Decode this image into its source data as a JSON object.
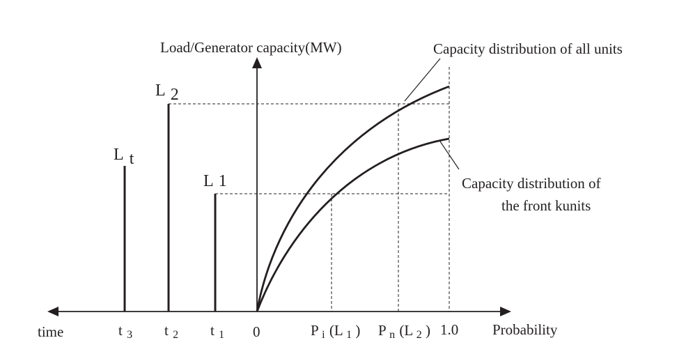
{
  "axis_labels": {
    "y": "Load/Generator capacity(MW)",
    "x_right": "Probability",
    "x_left": "time"
  },
  "curve_labels": {
    "all_units": "Capacity distribution of all units",
    "front_units_line1": "Capacity distribution of",
    "front_units_line2": "the front kunits"
  },
  "loads": {
    "lt": {
      "main": "L",
      "sub": "t"
    },
    "l2": {
      "main": "L",
      "sub": "2"
    },
    "l1": {
      "main": "L",
      "sub": "1"
    }
  },
  "ticks": {
    "t3": {
      "main": "t",
      "sub": "3"
    },
    "t2": {
      "main": "t",
      "sub": "2"
    },
    "t1": {
      "main": "t",
      "sub": "1"
    },
    "zero": "0",
    "pi": {
      "main": "P",
      "sub": "i",
      "arg_open": "(L",
      "arg_sub": "1",
      "arg_close": ")"
    },
    "pn": {
      "main": "P",
      "sub": "n",
      "arg_open": "(L",
      "arg_sub": "2",
      "arg_close": ")"
    },
    "one": "1.0"
  },
  "colors": {
    "ink": "#231f20"
  }
}
